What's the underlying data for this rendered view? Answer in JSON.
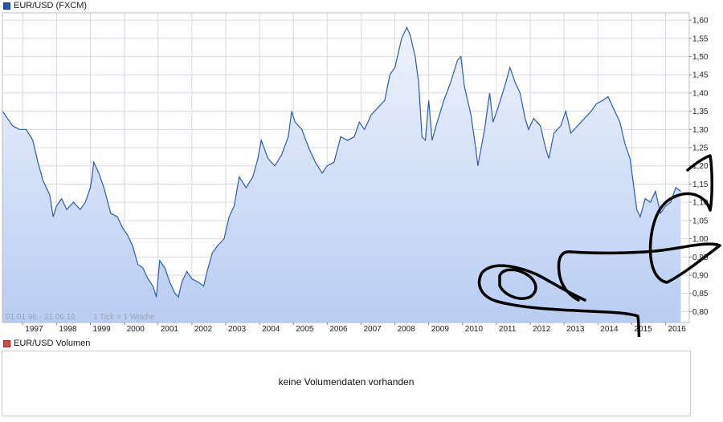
{
  "legend": {
    "price_label": "EUR/USD (FXCM)",
    "volume_label": "EUR/USD Volumen"
  },
  "info": {
    "range": "01.01.96 - 21.06.16",
    "tick": "1 Tick = 1 Woche"
  },
  "volume_message": "keine Volumendaten vorhanden",
  "colors": {
    "line": "#2b5cb0",
    "fill_top": "#eef3fc",
    "fill_bottom": "#b9cdf2",
    "grid": "#d6dbe4",
    "frame": "#b8bcc6",
    "price_legend": "#2a57a8",
    "volume_legend": "#d04a4a",
    "scribble": "#000000"
  },
  "chart_data": {
    "type": "area",
    "title": "EUR/USD (FXCM)",
    "xlabel": "",
    "ylabel": "",
    "xlim": [
      1996.4,
      2016.7
    ],
    "ylim": [
      0.77,
      1.62
    ],
    "y_ticks": [
      0.8,
      0.85,
      0.9,
      0.95,
      1.0,
      1.05,
      1.1,
      1.15,
      1.2,
      1.25,
      1.3,
      1.35,
      1.4,
      1.45,
      1.5,
      1.55,
      1.6
    ],
    "y_tick_labels": [
      "0,80",
      "0,85",
      "0,90",
      "0,95",
      "1,00",
      "1,05",
      "1,10",
      "1,15",
      "1,20",
      "1,25",
      "1,30",
      "1,35",
      "1,40",
      "1,45",
      "1,50",
      "1,55",
      "1,60"
    ],
    "x_ticks": [
      1997,
      1998,
      1999,
      2000,
      2001,
      2002,
      2003,
      2004,
      2005,
      2006,
      2007,
      2008,
      2009,
      2010,
      2011,
      2012,
      2013,
      2014,
      2015,
      2016
    ],
    "x_tick_labels": [
      "1997",
      "1998",
      "1999",
      "2000",
      "2001",
      "2002",
      "2003",
      "2004",
      "2005",
      "2006",
      "2007",
      "2008",
      "2009",
      "2010",
      "2011",
      "2012",
      "2013",
      "2014",
      "2015",
      "2016"
    ],
    "grid": true,
    "legend_position": "top-left",
    "series": [
      {
        "name": "EUR/USD (FXCM)",
        "points": [
          [
            1996.4,
            1.35
          ],
          [
            1996.7,
            1.31
          ],
          [
            1996.9,
            1.3
          ],
          [
            1997.1,
            1.3
          ],
          [
            1997.3,
            1.27
          ],
          [
            1997.45,
            1.21
          ],
          [
            1997.6,
            1.16
          ],
          [
            1997.8,
            1.12
          ],
          [
            1997.9,
            1.06
          ],
          [
            1998.0,
            1.09
          ],
          [
            1998.15,
            1.11
          ],
          [
            1998.3,
            1.08
          ],
          [
            1998.5,
            1.1
          ],
          [
            1998.7,
            1.08
          ],
          [
            1998.85,
            1.1
          ],
          [
            1999.0,
            1.14
          ],
          [
            1999.05,
            1.17
          ],
          [
            1999.1,
            1.21
          ],
          [
            1999.25,
            1.18
          ],
          [
            1999.4,
            1.14
          ],
          [
            1999.6,
            1.07
          ],
          [
            1999.8,
            1.06
          ],
          [
            1999.95,
            1.03
          ],
          [
            2000.1,
            1.01
          ],
          [
            2000.25,
            0.98
          ],
          [
            2000.4,
            0.93
          ],
          [
            2000.55,
            0.92
          ],
          [
            2000.7,
            0.89
          ],
          [
            2000.85,
            0.87
          ],
          [
            2000.95,
            0.84
          ],
          [
            2001.05,
            0.94
          ],
          [
            2001.2,
            0.92
          ],
          [
            2001.35,
            0.88
          ],
          [
            2001.5,
            0.85
          ],
          [
            2001.6,
            0.84
          ],
          [
            2001.7,
            0.88
          ],
          [
            2001.85,
            0.91
          ],
          [
            2002.0,
            0.89
          ],
          [
            2002.2,
            0.88
          ],
          [
            2002.35,
            0.87
          ],
          [
            2002.45,
            0.91
          ],
          [
            2002.6,
            0.96
          ],
          [
            2002.75,
            0.98
          ],
          [
            2002.95,
            1.0
          ],
          [
            2003.1,
            1.06
          ],
          [
            2003.25,
            1.09
          ],
          [
            2003.4,
            1.17
          ],
          [
            2003.6,
            1.14
          ],
          [
            2003.8,
            1.17
          ],
          [
            2003.95,
            1.22
          ],
          [
            2004.05,
            1.27
          ],
          [
            2004.25,
            1.22
          ],
          [
            2004.45,
            1.2
          ],
          [
            2004.65,
            1.23
          ],
          [
            2004.85,
            1.28
          ],
          [
            2004.95,
            1.35
          ],
          [
            2005.05,
            1.32
          ],
          [
            2005.25,
            1.3
          ],
          [
            2005.45,
            1.25
          ],
          [
            2005.65,
            1.21
          ],
          [
            2005.85,
            1.18
          ],
          [
            2006.0,
            1.2
          ],
          [
            2006.2,
            1.21
          ],
          [
            2006.4,
            1.28
          ],
          [
            2006.6,
            1.27
          ],
          [
            2006.8,
            1.28
          ],
          [
            2006.95,
            1.32
          ],
          [
            2007.1,
            1.3
          ],
          [
            2007.3,
            1.34
          ],
          [
            2007.5,
            1.36
          ],
          [
            2007.7,
            1.38
          ],
          [
            2007.85,
            1.45
          ],
          [
            2008.0,
            1.47
          ],
          [
            2008.2,
            1.55
          ],
          [
            2008.35,
            1.58
          ],
          [
            2008.45,
            1.56
          ],
          [
            2008.6,
            1.5
          ],
          [
            2008.7,
            1.43
          ],
          [
            2008.8,
            1.28
          ],
          [
            2008.9,
            1.27
          ],
          [
            2009.0,
            1.38
          ],
          [
            2009.1,
            1.27
          ],
          [
            2009.25,
            1.32
          ],
          [
            2009.45,
            1.38
          ],
          [
            2009.65,
            1.43
          ],
          [
            2009.85,
            1.49
          ],
          [
            2009.95,
            1.5
          ],
          [
            2010.05,
            1.42
          ],
          [
            2010.25,
            1.34
          ],
          [
            2010.4,
            1.24
          ],
          [
            2010.45,
            1.2
          ],
          [
            2010.65,
            1.3
          ],
          [
            2010.8,
            1.4
          ],
          [
            2010.9,
            1.32
          ],
          [
            2011.05,
            1.36
          ],
          [
            2011.25,
            1.42
          ],
          [
            2011.4,
            1.47
          ],
          [
            2011.55,
            1.43
          ],
          [
            2011.7,
            1.4
          ],
          [
            2011.85,
            1.33
          ],
          [
            2011.95,
            1.3
          ],
          [
            2012.1,
            1.33
          ],
          [
            2012.3,
            1.31
          ],
          [
            2012.45,
            1.25
          ],
          [
            2012.55,
            1.22
          ],
          [
            2012.7,
            1.29
          ],
          [
            2012.9,
            1.31
          ],
          [
            2013.05,
            1.35
          ],
          [
            2013.2,
            1.29
          ],
          [
            2013.4,
            1.31
          ],
          [
            2013.6,
            1.33
          ],
          [
            2013.8,
            1.35
          ],
          [
            2013.95,
            1.37
          ],
          [
            2014.15,
            1.38
          ],
          [
            2014.3,
            1.39
          ],
          [
            2014.45,
            1.36
          ],
          [
            2014.65,
            1.32
          ],
          [
            2014.8,
            1.26
          ],
          [
            2014.95,
            1.22
          ],
          [
            2015.05,
            1.15
          ],
          [
            2015.15,
            1.08
          ],
          [
            2015.25,
            1.06
          ],
          [
            2015.4,
            1.11
          ],
          [
            2015.55,
            1.1
          ],
          [
            2015.7,
            1.13
          ],
          [
            2015.85,
            1.07
          ],
          [
            2016.0,
            1.09
          ],
          [
            2016.15,
            1.1
          ],
          [
            2016.3,
            1.14
          ],
          [
            2016.45,
            1.13
          ]
        ]
      }
    ]
  }
}
